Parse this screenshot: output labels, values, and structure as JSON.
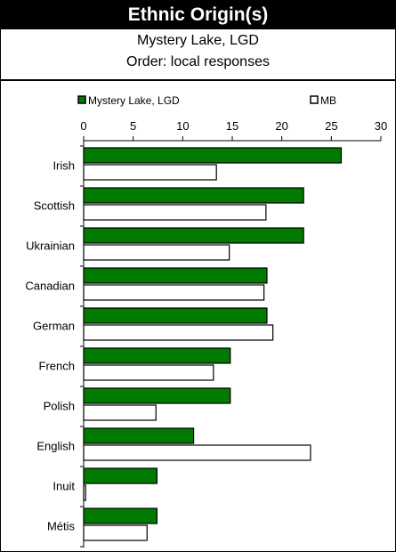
{
  "title": "Ethnic Origin(s)",
  "subtitle_line1": "Mystery Lake, LGD",
  "subtitle_line2": "Order: local responses",
  "colors": {
    "series1": "#007a00",
    "series2": "#ffffff",
    "outline": "#000000"
  },
  "chart_data": {
    "type": "bar",
    "orientation": "horizontal",
    "categories": [
      "Irish",
      "Scottish",
      "Ukrainian",
      "Canadian",
      "German",
      "French",
      "Polish",
      "English",
      "Inuit",
      "Métis"
    ],
    "series": [
      {
        "name": "Mystery Lake, LGD",
        "values": [
          26,
          22.2,
          22.2,
          18.5,
          18.5,
          14.8,
          14.8,
          11.1,
          7.4,
          7.4
        ]
      },
      {
        "name": "MB",
        "values": [
          13.4,
          18.4,
          14.7,
          18.2,
          19.1,
          13.1,
          7.3,
          22.9,
          0.2,
          6.4
        ]
      }
    ],
    "xlim": [
      0,
      30
    ],
    "xticks": [
      0,
      5,
      10,
      15,
      20,
      25,
      30
    ],
    "legend_position": "top",
    "grid": false
  }
}
